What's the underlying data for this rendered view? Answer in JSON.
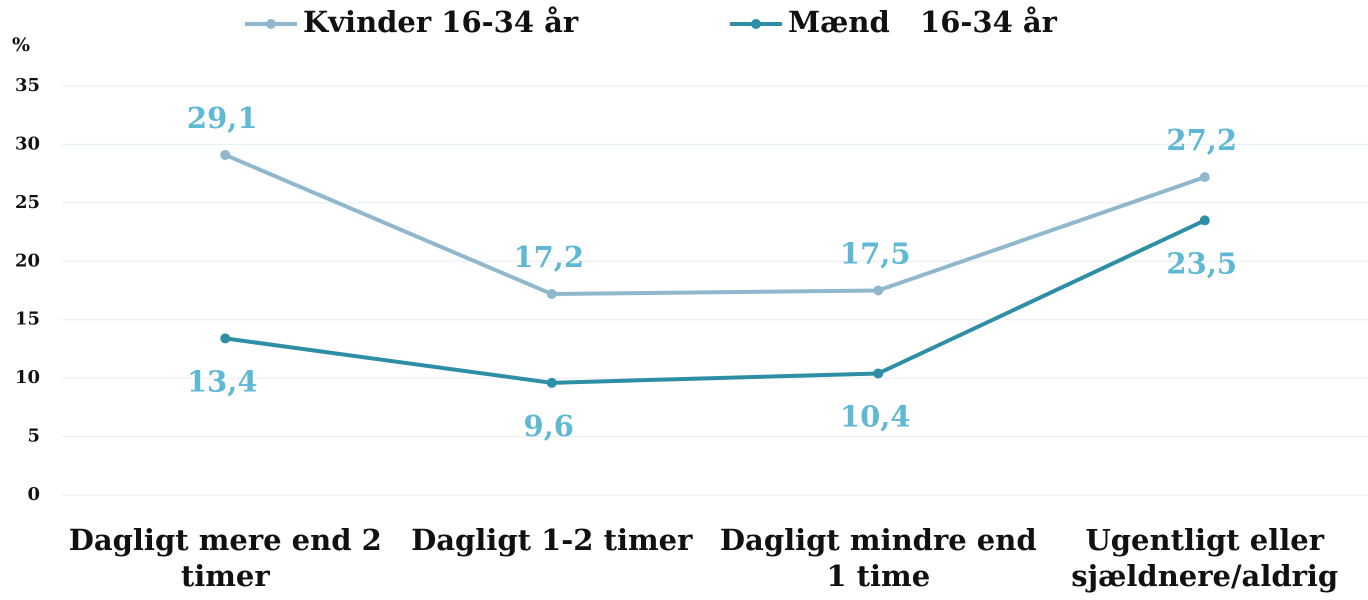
{
  "chart_data": {
    "type": "line",
    "y_label": "%",
    "categories": [
      "Dagligt mere end 2 timer",
      "Dagligt 1-2 timer",
      "Dagligt mindre end 1 time",
      "Ugentligt eller sjældnere/aldrig"
    ],
    "series": [
      {
        "name": "Kvinder 16-34 år",
        "color": "#8fb8cc",
        "values": [
          29.1,
          17.2,
          17.5,
          27.2
        ],
        "value_labels": [
          "29,1",
          "17,2",
          "17,5",
          "27,2"
        ]
      },
      {
        "name": "Mænd   16-34 år",
        "color": "#2e8ea6",
        "values": [
          13.4,
          9.6,
          10.4,
          23.5
        ],
        "value_labels": [
          "13,4",
          "9,6",
          "10,4",
          "23,5"
        ]
      }
    ],
    "label_color": "#5fb8d4",
    "ylim": [
      0,
      35
    ],
    "yticks": [
      0,
      5,
      10,
      15,
      20,
      25,
      30,
      35
    ],
    "grid": true,
    "legend": "top"
  }
}
